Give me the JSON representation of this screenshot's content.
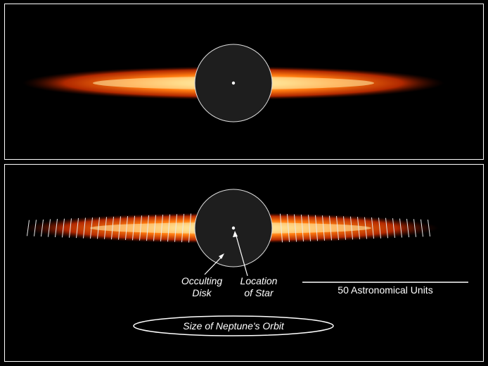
{
  "annotations": {
    "occulting_disk": [
      "Occulting",
      "Disk"
    ],
    "star_location": [
      "Location",
      "of Star"
    ],
    "scale_bar": "50 Astronomical Units",
    "orbit_label": "Size of Neptune's Orbit"
  },
  "colors": {
    "background": "#000000",
    "panel_border": "#ffffff",
    "occulter": "#1e1e1e",
    "disk_outer": "#8a1a00",
    "disk_mid": "#ff6a00",
    "disk_core": "#fff2c0"
  }
}
